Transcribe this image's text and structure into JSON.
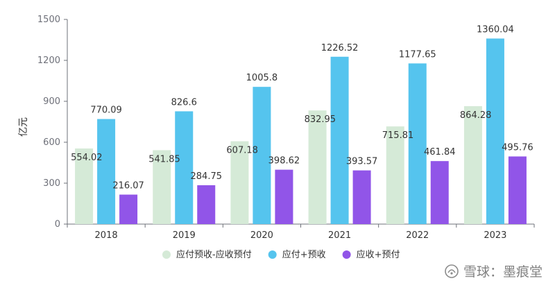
{
  "chart_data": {
    "type": "bar",
    "title": "",
    "xlabel": "",
    "ylabel": "亿元",
    "ylim": [
      0,
      1500
    ],
    "yticks": [
      0,
      300,
      600,
      900,
      1200,
      1500
    ],
    "grid": false,
    "legend_position": "bottom-center",
    "categories": [
      "2018",
      "2019",
      "2020",
      "2021",
      "2022",
      "2023"
    ],
    "series": [
      {
        "name": "应付预收-应收预付",
        "color": "#d5ead7",
        "values": [
          554.02,
          541.85,
          607.18,
          832.95,
          715.81,
          864.28
        ]
      },
      {
        "name": "应付+预收",
        "color": "#55c4ee",
        "values": [
          770.09,
          826.6,
          1005.8,
          1226.52,
          1177.65,
          1360.04
        ]
      },
      {
        "name": "应收+预付",
        "color": "#9155e8",
        "values": [
          216.07,
          284.75,
          398.62,
          393.57,
          461.84,
          495.76
        ]
      }
    ]
  },
  "watermark": {
    "text": "雪球：墨痕堂"
  }
}
